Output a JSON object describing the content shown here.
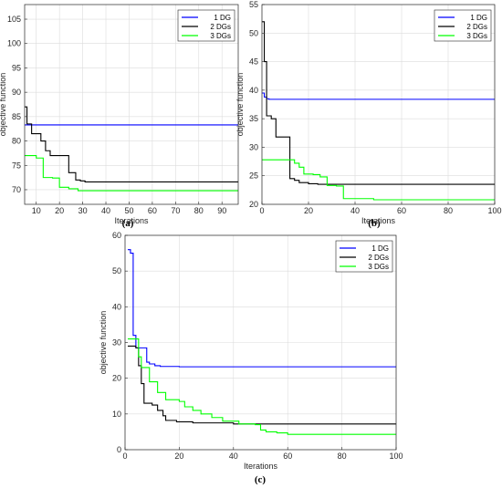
{
  "chart_data": [
    {
      "type": "line",
      "panel_label": "(a)",
      "xlabel": "Iterations",
      "ylabel": "objective function",
      "xlim": [
        5,
        97
      ],
      "ylim": [
        67,
        108
      ],
      "xticks": [
        10,
        20,
        30,
        40,
        50,
        60,
        70,
        80,
        90
      ],
      "yticks": [
        70,
        75,
        80,
        85,
        90,
        95,
        100,
        105
      ],
      "grid": true,
      "legend_position": "top-right",
      "series": [
        {
          "name": "1 DG",
          "color": "#0000ff",
          "step": true,
          "x": [
            5,
            97
          ],
          "y": [
            83.3,
            83.3
          ]
        },
        {
          "name": "2 DGs",
          "color": "#000000",
          "step": true,
          "x": [
            5,
            6,
            8,
            12,
            14,
            16,
            22,
            24,
            27,
            29,
            31,
            97
          ],
          "y": [
            87,
            83.5,
            81.5,
            80,
            78,
            77,
            77,
            73.5,
            72,
            71.8,
            71.6,
            71.6
          ]
        },
        {
          "name": "3 DGs",
          "color": "#00ff00",
          "step": true,
          "x": [
            5,
            10,
            13,
            17,
            20,
            24,
            28,
            97
          ],
          "y": [
            77,
            76.5,
            72.5,
            72.4,
            70.5,
            70.2,
            69.8,
            69.8
          ]
        }
      ]
    },
    {
      "type": "line",
      "panel_label": "(b)",
      "xlabel": "Iterations",
      "ylabel": "objective function",
      "xlim": [
        0,
        100
      ],
      "ylim": [
        20,
        55
      ],
      "xticks": [
        0,
        20,
        40,
        60,
        80,
        100
      ],
      "yticks": [
        20,
        25,
        30,
        35,
        40,
        45,
        50,
        55
      ],
      "grid": true,
      "legend_position": "top-right",
      "series": [
        {
          "name": "1 DG",
          "color": "#0000ff",
          "step": true,
          "x": [
            0,
            1,
            2,
            3,
            100
          ],
          "y": [
            39.5,
            38.8,
            38.5,
            38.4,
            38.4
          ]
        },
        {
          "name": "2 DGs",
          "color": "#000000",
          "step": true,
          "x": [
            0,
            1,
            2,
            4,
            6,
            12,
            14,
            16,
            20,
            24,
            100
          ],
          "y": [
            52,
            45,
            35.5,
            35,
            31.8,
            24.5,
            24.2,
            23.8,
            23.6,
            23.5,
            23.5
          ]
        },
        {
          "name": "3 DGs",
          "color": "#00ff00",
          "step": true,
          "x": [
            0,
            14,
            16,
            18,
            22,
            25,
            28,
            32,
            35,
            48,
            100
          ],
          "y": [
            27.8,
            27.2,
            26.5,
            25.3,
            25.2,
            24.8,
            23.3,
            23.2,
            21,
            20.8,
            20.8
          ]
        }
      ]
    },
    {
      "type": "line",
      "panel_label": "(c)",
      "xlabel": "Iterations",
      "ylabel": "objective function",
      "xlim": [
        0,
        100
      ],
      "ylim": [
        0,
        60
      ],
      "xticks": [
        0,
        20,
        40,
        60,
        80,
        100
      ],
      "yticks": [
        0,
        10,
        20,
        30,
        40,
        50,
        60
      ],
      "grid": true,
      "legend_position": "top-right",
      "series": [
        {
          "name": "1 DG",
          "color": "#0000ff",
          "step": true,
          "x": [
            1,
            2,
            3,
            4,
            8,
            9,
            11,
            13,
            20,
            100
          ],
          "y": [
            56,
            55,
            32,
            28.5,
            24.5,
            24,
            23.5,
            23.3,
            23.2,
            23.2
          ]
        },
        {
          "name": "2 DGs",
          "color": "#000000",
          "step": true,
          "x": [
            1,
            4,
            5,
            6,
            7,
            10,
            12,
            14,
            15,
            19,
            25,
            40,
            100
          ],
          "y": [
            29,
            28.5,
            23.5,
            18.5,
            13,
            12.5,
            11,
            9.5,
            8.2,
            7.8,
            7.5,
            7.2,
            7.2
          ]
        },
        {
          "name": "3 DGs",
          "color": "#00ff00",
          "step": true,
          "x": [
            1,
            5,
            6,
            9,
            12,
            15,
            20,
            22,
            25,
            28,
            32,
            36,
            42,
            48,
            50,
            52,
            56,
            60,
            100
          ],
          "y": [
            31,
            26,
            23,
            19,
            16,
            14,
            13.5,
            12,
            11,
            10,
            9,
            8,
            7.2,
            7,
            5.5,
            5,
            4.7,
            4.3,
            4.3
          ]
        }
      ]
    }
  ]
}
